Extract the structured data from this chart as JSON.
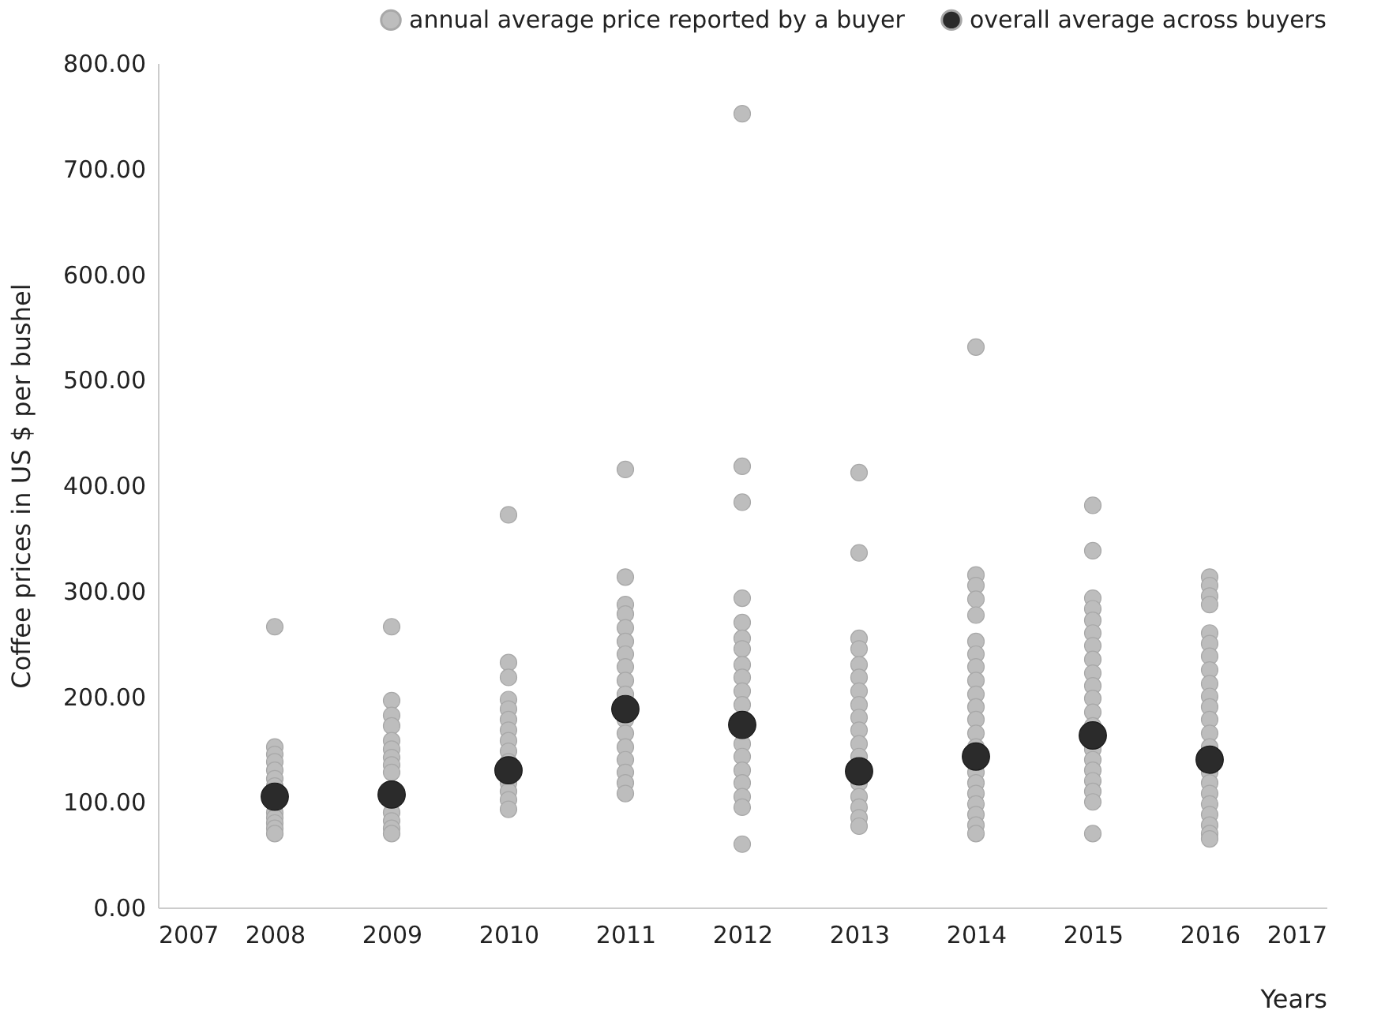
{
  "chart_data": {
    "type": "scatter",
    "xlabel": "Years",
    "ylabel": "Coffee prices in US $ per bushel",
    "xlim": [
      2007,
      2017
    ],
    "xticks": [
      2007,
      2008,
      2009,
      2010,
      2011,
      2012,
      2013,
      2014,
      2015,
      2016,
      2017
    ],
    "ylim": [
      0,
      800
    ],
    "yticks": [
      {
        "value": 0,
        "label": "0.00"
      },
      {
        "value": 100,
        "label": "100.00"
      },
      {
        "value": 200,
        "label": "200.00"
      },
      {
        "value": 300,
        "label": "300.00"
      },
      {
        "value": 400,
        "label": "400.00"
      },
      {
        "value": 500,
        "label": "500.00"
      },
      {
        "value": 600,
        "label": "600.00"
      },
      {
        "value": 700,
        "label": "700.00"
      },
      {
        "value": 800,
        "label": "800.00"
      }
    ],
    "grid": false,
    "legend": "top right",
    "marker": "circle",
    "series": [
      {
        "name": "annual average price reported by a buyer",
        "color": "#bdbdbd",
        "x": [
          2008,
          2008,
          2008,
          2008,
          2008,
          2008,
          2008,
          2008,
          2008,
          2008,
          2008,
          2008,
          2009,
          2009,
          2009,
          2009,
          2009,
          2009,
          2009,
          2009,
          2009,
          2009,
          2009,
          2009,
          2009,
          2010,
          2010,
          2010,
          2010,
          2010,
          2010,
          2010,
          2010,
          2010,
          2010,
          2010,
          2010,
          2010,
          2010,
          2011,
          2011,
          2011,
          2011,
          2011,
          2011,
          2011,
          2011,
          2011,
          2011,
          2011,
          2011,
          2011,
          2011,
          2011,
          2011,
          2011,
          2012,
          2012,
          2012,
          2012,
          2012,
          2012,
          2012,
          2012,
          2012,
          2012,
          2012,
          2012,
          2012,
          2012,
          2012,
          2012,
          2012,
          2012,
          2013,
          2013,
          2013,
          2013,
          2013,
          2013,
          2013,
          2013,
          2013,
          2013,
          2013,
          2013,
          2013,
          2013,
          2013,
          2013,
          2013,
          2014,
          2014,
          2014,
          2014,
          2014,
          2014,
          2014,
          2014,
          2014,
          2014,
          2014,
          2014,
          2014,
          2014,
          2014,
          2014,
          2014,
          2014,
          2014,
          2014,
          2014,
          2015,
          2015,
          2015,
          2015,
          2015,
          2015,
          2015,
          2015,
          2015,
          2015,
          2015,
          2015,
          2015,
          2015,
          2015,
          2015,
          2015,
          2015,
          2015,
          2015,
          2016,
          2016,
          2016,
          2016,
          2016,
          2016,
          2016,
          2016,
          2016,
          2016,
          2016,
          2016,
          2016,
          2016,
          2016,
          2016,
          2016,
          2016,
          2016,
          2016,
          2016,
          2016
        ],
        "values": [
          266,
          152,
          145,
          138,
          130,
          122,
          115,
          90,
          85,
          80,
          75,
          70,
          266,
          196,
          182,
          172,
          158,
          150,
          142,
          135,
          128,
          90,
          82,
          75,
          70,
          372,
          232,
          218,
          197,
          188,
          178,
          168,
          158,
          148,
          138,
          118,
          110,
          102,
          93,
          415,
          313,
          287,
          278,
          265,
          252,
          240,
          228,
          215,
          202,
          178,
          165,
          152,
          140,
          128,
          118,
          108,
          752,
          418,
          384,
          293,
          270,
          255,
          245,
          230,
          218,
          205,
          192,
          155,
          143,
          130,
          118,
          105,
          95,
          60,
          412,
          336,
          255,
          245,
          230,
          218,
          205,
          192,
          180,
          168,
          155,
          143,
          118,
          105,
          95,
          85,
          77,
          531,
          315,
          305,
          292,
          277,
          252,
          240,
          228,
          215,
          202,
          190,
          178,
          165,
          152,
          128,
          118,
          108,
          98,
          88,
          78,
          70,
          381,
          338,
          293,
          283,
          272,
          260,
          248,
          235,
          222,
          210,
          198,
          185,
          172,
          150,
          140,
          130,
          120,
          110,
          100,
          70,
          313,
          305,
          295,
          287,
          260,
          250,
          238,
          225,
          212,
          200,
          190,
          178,
          165,
          152,
          128,
          118,
          108,
          98,
          88,
          78,
          70,
          65
        ]
      },
      {
        "name": "overall average across buyers",
        "color": "#2b2b2b",
        "x": [
          2008,
          2009,
          2010,
          2011,
          2012,
          2013,
          2014,
          2015,
          2016
        ],
        "values": [
          105,
          107,
          130,
          188,
          173,
          129,
          143,
          163,
          140
        ]
      }
    ]
  }
}
